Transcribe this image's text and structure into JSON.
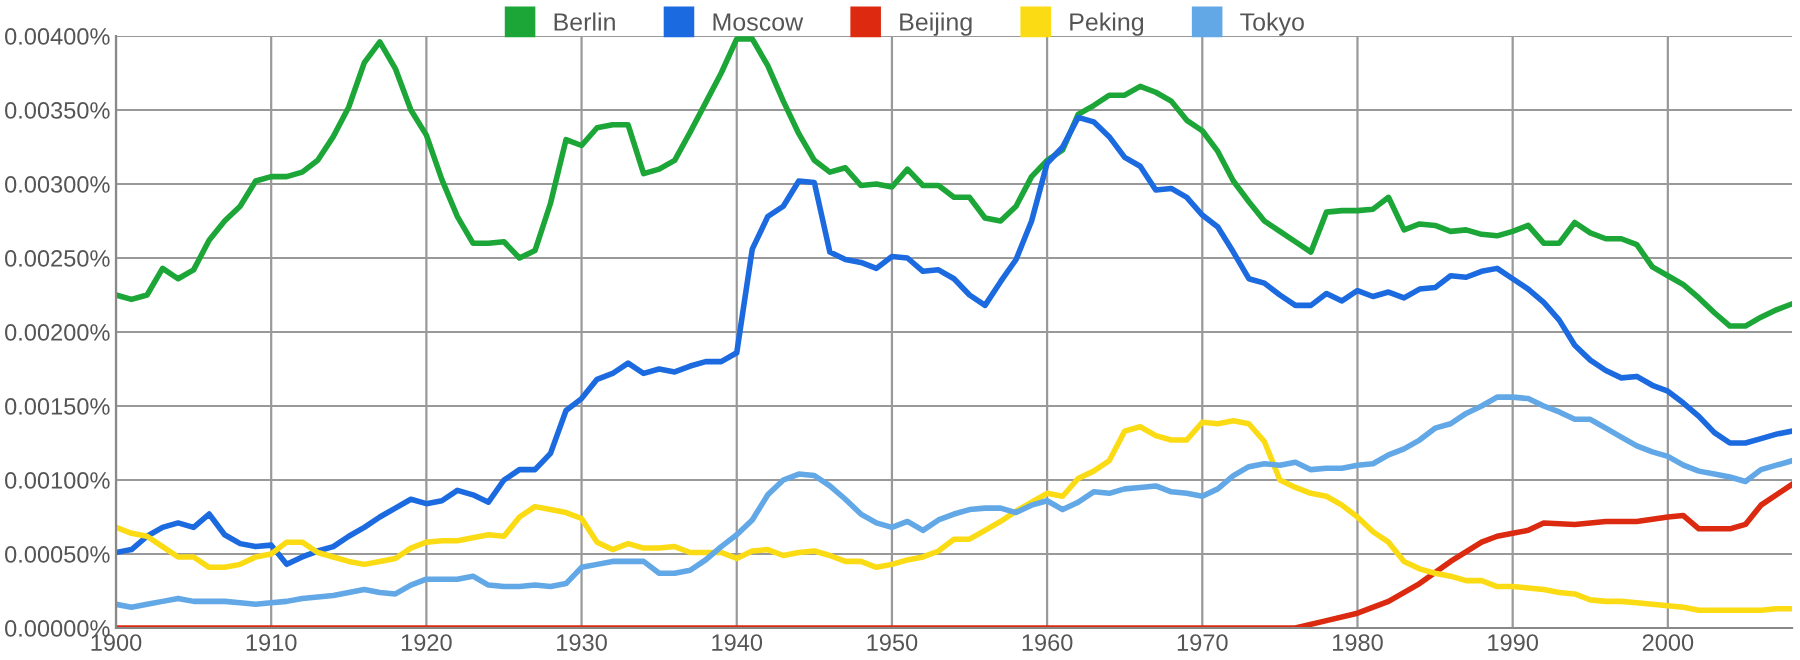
{
  "chart_data": {
    "type": "line",
    "x": [
      1900,
      1901,
      1902,
      1903,
      1904,
      1905,
      1906,
      1907,
      1908,
      1909,
      1910,
      1911,
      1912,
      1913,
      1914,
      1915,
      1916,
      1917,
      1918,
      1919,
      1920,
      1921,
      1922,
      1923,
      1924,
      1925,
      1926,
      1927,
      1928,
      1929,
      1930,
      1931,
      1932,
      1933,
      1934,
      1935,
      1936,
      1937,
      1938,
      1939,
      1940,
      1941,
      1942,
      1943,
      1944,
      1945,
      1946,
      1947,
      1948,
      1949,
      1950,
      1951,
      1952,
      1953,
      1954,
      1955,
      1956,
      1957,
      1958,
      1959,
      1960,
      1961,
      1962,
      1963,
      1964,
      1965,
      1966,
      1967,
      1968,
      1969,
      1970,
      1971,
      1972,
      1973,
      1974,
      1975,
      1976,
      1977,
      1978,
      1979,
      1980,
      1981,
      1982,
      1983,
      1984,
      1985,
      1986,
      1987,
      1988,
      1989,
      1990,
      1991,
      1992,
      1993,
      1994,
      1995,
      1996,
      1997,
      1998,
      1999,
      2000,
      2001,
      2002,
      2003,
      2004,
      2005,
      2006,
      2007,
      2008
    ],
    "series": [
      {
        "name": "Berlin",
        "color": "#1ca637",
        "values": [
          0.00225,
          0.00222,
          0.00225,
          0.00243,
          0.00236,
          0.00242,
          0.00262,
          0.00275,
          0.00285,
          0.00302,
          0.00305,
          0.00305,
          0.00308,
          0.00316,
          0.00332,
          0.00352,
          0.00382,
          0.00396,
          0.00378,
          0.0035,
          0.00333,
          0.00303,
          0.00278,
          0.0026,
          0.0026,
          0.00261,
          0.0025,
          0.00255,
          0.00287,
          0.0033,
          0.00326,
          0.00338,
          0.0034,
          0.0034,
          0.00307,
          0.0031,
          0.00316,
          0.00335,
          0.00355,
          0.00375,
          0.00398,
          0.00398,
          0.0038,
          0.00356,
          0.00334,
          0.00316,
          0.00308,
          0.00311,
          0.00299,
          0.003,
          0.00298,
          0.0031,
          0.00299,
          0.00299,
          0.00291,
          0.00291,
          0.00277,
          0.00275,
          0.00285,
          0.00305,
          0.00316,
          0.00323,
          0.00347,
          0.00353,
          0.0036,
          0.0036,
          0.00366,
          0.00362,
          0.00356,
          0.00343,
          0.00336,
          0.00322,
          0.00302,
          0.00288,
          0.00275,
          0.00268,
          0.00261,
          0.00254,
          0.00281,
          0.00282,
          0.00282,
          0.00283,
          0.00291,
          0.00269,
          0.00273,
          0.00272,
          0.00268,
          0.00269,
          0.00266,
          0.00265,
          0.00268,
          0.00272,
          0.0026,
          0.0026,
          0.00274,
          0.00267,
          0.00263,
          0.00263,
          0.00259,
          0.00244,
          0.00238,
          0.00232,
          0.00223,
          0.00213,
          0.00204,
          0.00204,
          0.0021,
          0.00215,
          0.00219
        ]
      },
      {
        "name": "Moscow",
        "color": "#1c6ae0",
        "values": [
          0.00051,
          0.00053,
          0.00062,
          0.00068,
          0.00071,
          0.00068,
          0.00077,
          0.00063,
          0.00057,
          0.00055,
          0.00056,
          0.00043,
          0.00048,
          0.00052,
          0.00055,
          0.00062,
          0.00068,
          0.00075,
          0.00081,
          0.00087,
          0.00084,
          0.00086,
          0.00093,
          0.0009,
          0.00085,
          0.001,
          0.00107,
          0.00107,
          0.00118,
          0.00147,
          0.00155,
          0.00168,
          0.00172,
          0.00179,
          0.00172,
          0.00175,
          0.00173,
          0.00177,
          0.0018,
          0.0018,
          0.00186,
          0.00256,
          0.00278,
          0.00285,
          0.00302,
          0.00301,
          0.00254,
          0.00249,
          0.00247,
          0.00243,
          0.00251,
          0.0025,
          0.00241,
          0.00242,
          0.00236,
          0.00225,
          0.00218,
          0.00234,
          0.00249,
          0.00275,
          0.00314,
          0.00325,
          0.00345,
          0.00342,
          0.00332,
          0.00318,
          0.00312,
          0.00296,
          0.00297,
          0.00291,
          0.00279,
          0.00271,
          0.00254,
          0.00236,
          0.00233,
          0.00225,
          0.00218,
          0.00218,
          0.00226,
          0.00221,
          0.00228,
          0.00224,
          0.00227,
          0.00223,
          0.00229,
          0.0023,
          0.00238,
          0.00237,
          0.00241,
          0.00243,
          0.00236,
          0.00229,
          0.0022,
          0.00208,
          0.00191,
          0.00181,
          0.00174,
          0.00169,
          0.0017,
          0.00164,
          0.0016,
          0.00152,
          0.00143,
          0.00132,
          0.00125,
          0.00125,
          0.00128,
          0.00131,
          0.00133
        ]
      },
      {
        "name": "Beijing",
        "color": "#dc2a10",
        "x": [
          1900,
          1970,
          1974,
          1976,
          1978,
          1980,
          1982,
          1984,
          1986,
          1988,
          1989,
          1990,
          1991,
          1992,
          1994,
          1996,
          1998,
          2000,
          2001,
          2002,
          2004,
          2005,
          2006,
          2007,
          2008
        ],
        "values": [
          0,
          0,
          0,
          0,
          5e-05,
          0.0001,
          0.00018,
          0.0003,
          0.00045,
          0.00058,
          0.00062,
          0.00064,
          0.00066,
          0.00071,
          0.0007,
          0.00072,
          0.00072,
          0.00075,
          0.00076,
          0.00067,
          0.00067,
          0.0007,
          0.00083,
          0.0009,
          0.00097
        ]
      },
      {
        "name": "Peking",
        "color": "#fbdc14",
        "values": [
          0.00068,
          0.00064,
          0.00062,
          0.00055,
          0.00048,
          0.00048,
          0.00041,
          0.00041,
          0.00043,
          0.00048,
          0.0005,
          0.00058,
          0.00058,
          0.00051,
          0.00048,
          0.00045,
          0.00043,
          0.00045,
          0.00047,
          0.00054,
          0.00058,
          0.00059,
          0.00059,
          0.00061,
          0.00063,
          0.00062,
          0.00075,
          0.00082,
          0.0008,
          0.00078,
          0.00074,
          0.00058,
          0.00053,
          0.00057,
          0.00054,
          0.00054,
          0.00055,
          0.00051,
          0.00051,
          0.00051,
          0.00047,
          0.00052,
          0.00053,
          0.00049,
          0.00051,
          0.00052,
          0.00049,
          0.00045,
          0.00045,
          0.00041,
          0.00043,
          0.00046,
          0.00048,
          0.00052,
          0.0006,
          0.0006,
          0.00066,
          0.00072,
          0.00079,
          0.00085,
          0.00091,
          0.00089,
          0.00101,
          0.00106,
          0.00113,
          0.00133,
          0.00136,
          0.0013,
          0.00127,
          0.00127,
          0.00139,
          0.00138,
          0.0014,
          0.00138,
          0.00126,
          0.001,
          0.00095,
          0.00091,
          0.00089,
          0.00083,
          0.00075,
          0.00065,
          0.00058,
          0.00045,
          0.0004,
          0.00037,
          0.00035,
          0.00032,
          0.00032,
          0.00028,
          0.00028,
          0.00027,
          0.00026,
          0.00024,
          0.00023,
          0.00019,
          0.00018,
          0.00018,
          0.00017,
          0.00016,
          0.00015,
          0.00014,
          0.00012,
          0.00012,
          0.00012,
          0.00012,
          0.00012,
          0.00013,
          0.00013
        ]
      },
      {
        "name": "Tokyo",
        "color": "#62a8e6",
        "values": [
          0.00016,
          0.00014,
          0.00016,
          0.00018,
          0.0002,
          0.00018,
          0.00018,
          0.00018,
          0.00017,
          0.00016,
          0.00017,
          0.00018,
          0.0002,
          0.00021,
          0.00022,
          0.00024,
          0.00026,
          0.00024,
          0.00023,
          0.00029,
          0.00033,
          0.00033,
          0.00033,
          0.00035,
          0.00029,
          0.00028,
          0.00028,
          0.00029,
          0.00028,
          0.0003,
          0.00041,
          0.00043,
          0.00045,
          0.00045,
          0.00045,
          0.00037,
          0.00037,
          0.00039,
          0.00046,
          0.00055,
          0.00063,
          0.00073,
          0.0009,
          0.001,
          0.00104,
          0.00103,
          0.00096,
          0.00087,
          0.00077,
          0.00071,
          0.00068,
          0.00072,
          0.00066,
          0.00073,
          0.00077,
          0.0008,
          0.00081,
          0.00081,
          0.00078,
          0.00083,
          0.00086,
          0.0008,
          0.00085,
          0.00092,
          0.00091,
          0.00094,
          0.00095,
          0.00096,
          0.00092,
          0.00091,
          0.00089,
          0.00094,
          0.00103,
          0.00109,
          0.00111,
          0.0011,
          0.00112,
          0.00107,
          0.00108,
          0.00108,
          0.0011,
          0.00111,
          0.00117,
          0.00121,
          0.00127,
          0.00135,
          0.00138,
          0.00145,
          0.0015,
          0.00156,
          0.00156,
          0.00155,
          0.0015,
          0.00146,
          0.00141,
          0.00141,
          0.00135,
          0.00129,
          0.00123,
          0.00119,
          0.00116,
          0.0011,
          0.00106,
          0.00104,
          0.00102,
          0.00099,
          0.00107,
          0.0011,
          0.00113
        ]
      }
    ],
    "xlim": [
      1900,
      2008
    ],
    "xticks": [
      1900,
      1910,
      1920,
      1930,
      1940,
      1950,
      1960,
      1970,
      1980,
      1990,
      2000
    ],
    "ylim": [
      0,
      0.004
    ],
    "yticks": [
      {
        "value": 0,
        "label": "0.00000%"
      },
      {
        "value": 0.0005,
        "label": "0.00050%"
      },
      {
        "value": 0.001,
        "label": "0.00100%"
      },
      {
        "value": 0.0015,
        "label": "0.00150%"
      },
      {
        "value": 0.002,
        "label": "0.00200%"
      },
      {
        "value": 0.0025,
        "label": "0.00250%"
      },
      {
        "value": 0.003,
        "label": "0.00300%"
      },
      {
        "value": 0.0035,
        "label": "0.00350%"
      },
      {
        "value": 0.004,
        "label": "0.00400%"
      }
    ],
    "grid": true,
    "legend": "top",
    "marker": "none",
    "line_style": "solid"
  }
}
